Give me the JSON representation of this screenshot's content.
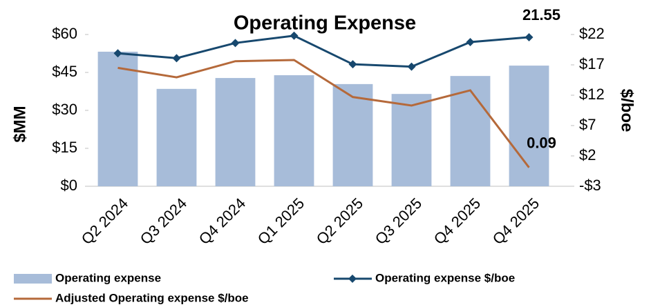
{
  "chart_data": {
    "type": "bar",
    "title": "Operating Expense",
    "ylabel": "$MM",
    "y2label": "$/boe",
    "categories": [
      "Q2 2024",
      "Q3 2024",
      "Q4 2024",
      "Q1 2025",
      "Q2 2025",
      "Q3 2025",
      "Q4 2025",
      "Q4 2025"
    ],
    "series": [
      {
        "name": "Operating expense",
        "type": "bar",
        "color": "#a7bcd9",
        "values": [
          53.2,
          38.5,
          42.8,
          43.9,
          40.4,
          36.5,
          43.6,
          47.7
        ]
      },
      {
        "name": "Operating expense $/boe",
        "type": "line",
        "axis": "y2",
        "marker": "diamond",
        "color": "#17486e",
        "label_color": "#1f4e79",
        "values": [
          18.9,
          18.1,
          20.6,
          21.8,
          17.1,
          16.7,
          20.75,
          21.55
        ]
      },
      {
        "name": "Adjusted Operating expense $/boe",
        "type": "line",
        "axis": "y2",
        "color": "#b5693a",
        "label_color": "#b8682f",
        "values": [
          16.5,
          14.95,
          17.6,
          17.8,
          11.7,
          10.3,
          12.8,
          0.09
        ]
      }
    ],
    "ylim": [
      0,
      60
    ],
    "yticks": [
      {
        "value": 0,
        "label": "$0"
      },
      {
        "value": 15,
        "label": "$15"
      },
      {
        "value": 30,
        "label": "$30"
      },
      {
        "value": 45,
        "label": "$45"
      },
      {
        "value": 60,
        "label": "$60"
      }
    ],
    "y2lim": [
      -3,
      22
    ],
    "y2ticks": [
      {
        "value": -3,
        "label": "-$3"
      },
      {
        "value": 2,
        "label": "$2"
      },
      {
        "value": 7,
        "label": "$7"
      },
      {
        "value": 12,
        "label": "$12"
      },
      {
        "value": 17,
        "label": "$17"
      },
      {
        "value": 22,
        "label": "$22"
      }
    ],
    "grid": false,
    "legend": "bottom"
  }
}
